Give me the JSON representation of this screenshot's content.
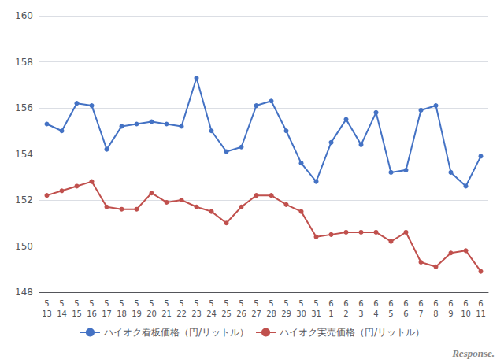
{
  "chart_data": {
    "type": "line",
    "categories": [
      "5\n13",
      "5\n14",
      "5\n15",
      "5\n16",
      "5\n17",
      "5\n18",
      "5\n19",
      "5\n20",
      "5\n21",
      "5\n22",
      "5\n23",
      "5\n24",
      "5\n25",
      "5\n26",
      "5\n27",
      "5\n28",
      "5\n29",
      "5\n30",
      "5\n31",
      "6\n1",
      "6\n2",
      "6\n3",
      "6\n4",
      "6\n5",
      "6\n6",
      "6\n7",
      "6\n8",
      "6\n9",
      "6\n10",
      "6\n11"
    ],
    "series": [
      {
        "name": "ハイオク看板価格（円/リットル）",
        "color": "#4472c4",
        "marker": "circle",
        "values": [
          155.3,
          155.0,
          156.2,
          156.1,
          154.2,
          155.2,
          155.3,
          155.4,
          155.3,
          155.2,
          157.3,
          155.0,
          154.1,
          154.3,
          156.1,
          156.3,
          155.0,
          153.6,
          152.8,
          154.5,
          155.5,
          154.4,
          155.8,
          153.2,
          153.3,
          155.9,
          156.1,
          153.2,
          152.6,
          153.9
        ]
      },
      {
        "name": "ハイオク実売価格（円/リットル）",
        "color": "#c0504d",
        "marker": "circle",
        "values": [
          152.2,
          152.4,
          152.6,
          152.8,
          151.7,
          151.6,
          151.6,
          152.3,
          151.9,
          152.0,
          151.7,
          151.5,
          151.0,
          151.7,
          152.2,
          152.2,
          151.8,
          151.5,
          150.4,
          150.5,
          150.6,
          150.6,
          150.6,
          150.2,
          150.6,
          149.3,
          149.1,
          149.7,
          149.8,
          148.9
        ]
      }
    ],
    "ylim": [
      148,
      160
    ],
    "yticks": [
      148,
      150,
      152,
      154,
      156,
      158,
      160
    ],
    "grid": true,
    "legend": "bottom",
    "annotations": [
      "Response."
    ]
  }
}
